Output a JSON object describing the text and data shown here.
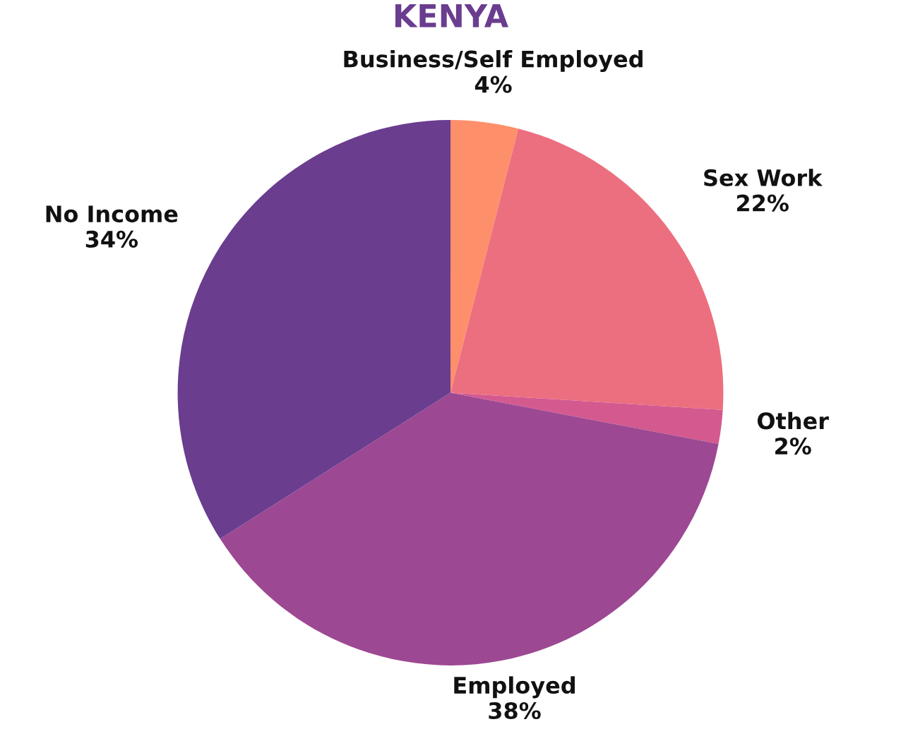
{
  "chart_data": {
    "type": "pie",
    "title": "KENYA",
    "categories": [
      "Business/Self Employed",
      "Sex Work",
      "Other",
      "Employed",
      "No Income"
    ],
    "values": [
      4,
      22,
      2,
      38,
      34
    ],
    "colors": [
      "#fe8f6b",
      "#ec6f7f",
      "#d4598f",
      "#9d4892",
      "#6a3d8f"
    ],
    "value_labels": [
      "4%",
      "22%",
      "2%",
      "38%",
      "34%"
    ]
  }
}
